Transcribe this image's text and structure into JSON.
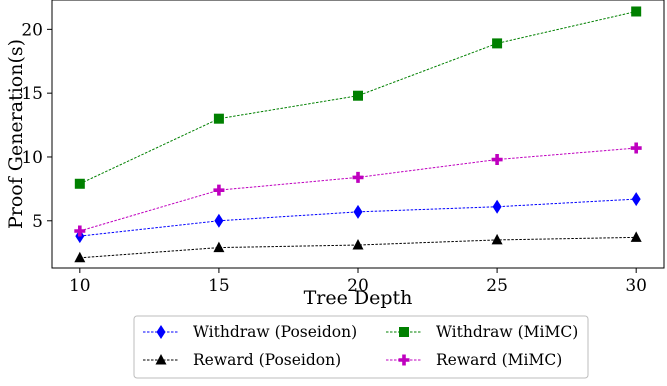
{
  "chart_data": {
    "type": "line",
    "title": "",
    "xlabel": "Tree Depth",
    "ylabel": "Proof Generation(s)",
    "x": [
      10,
      15,
      20,
      25,
      30
    ],
    "xticks": [
      "10",
      "15",
      "20",
      "25",
      "30"
    ],
    "yticks": [
      "5",
      "10",
      "15",
      "20"
    ],
    "xlim": [
      9,
      31
    ],
    "ylim": [
      1.3,
      22.3
    ],
    "grid": false,
    "legend_position": "bottom-outside",
    "series": [
      {
        "name": "Withdraw (Poseidon)",
        "values": [
          3.8,
          5.0,
          5.7,
          6.1,
          6.7
        ],
        "color": "#0000ff",
        "marker": "diamond",
        "line_style": "dashed"
      },
      {
        "name": "Withdraw (MiMC)",
        "values": [
          7.9,
          13.0,
          14.8,
          18.9,
          21.4
        ],
        "color": "#008000",
        "marker": "square",
        "line_style": "dashed"
      },
      {
        "name": "Reward (Poseidon)",
        "values": [
          2.1,
          2.9,
          3.1,
          3.5,
          3.7
        ],
        "color": "#000000",
        "marker": "triangle",
        "line_style": "dashed"
      },
      {
        "name": "Reward (MiMC)",
        "values": [
          4.2,
          7.4,
          8.4,
          9.8,
          10.7
        ],
        "color": "#bf00bf",
        "marker": "plus",
        "line_style": "dashed"
      }
    ]
  }
}
